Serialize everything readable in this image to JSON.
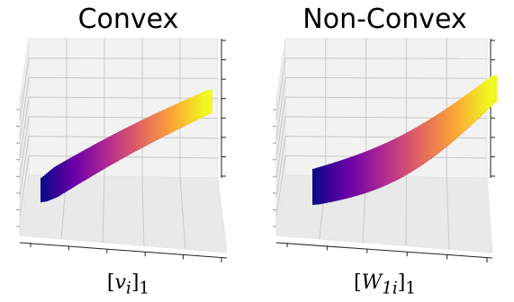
{
  "chart_data": [
    {
      "type": "surface",
      "title": "Convex",
      "xlabel_base": "v",
      "xlabel_sub": "i",
      "xlabel_outer_sub": "1",
      "colormap": [
        "#0d0887",
        "#6a00a8",
        "#b12a90",
        "#e16462",
        "#fca636",
        "#f0f921"
      ],
      "grid": true,
      "shape": "linear"
    },
    {
      "type": "surface",
      "title": "Non-Convex",
      "xlabel_base": "W",
      "xlabel_sub": "1i",
      "xlabel_outer_sub": "1",
      "colormap": [
        "#0d0887",
        "#6a00a8",
        "#b12a90",
        "#e16462",
        "#fca636",
        "#f0f921"
      ],
      "grid": true,
      "shape": "curved"
    }
  ]
}
